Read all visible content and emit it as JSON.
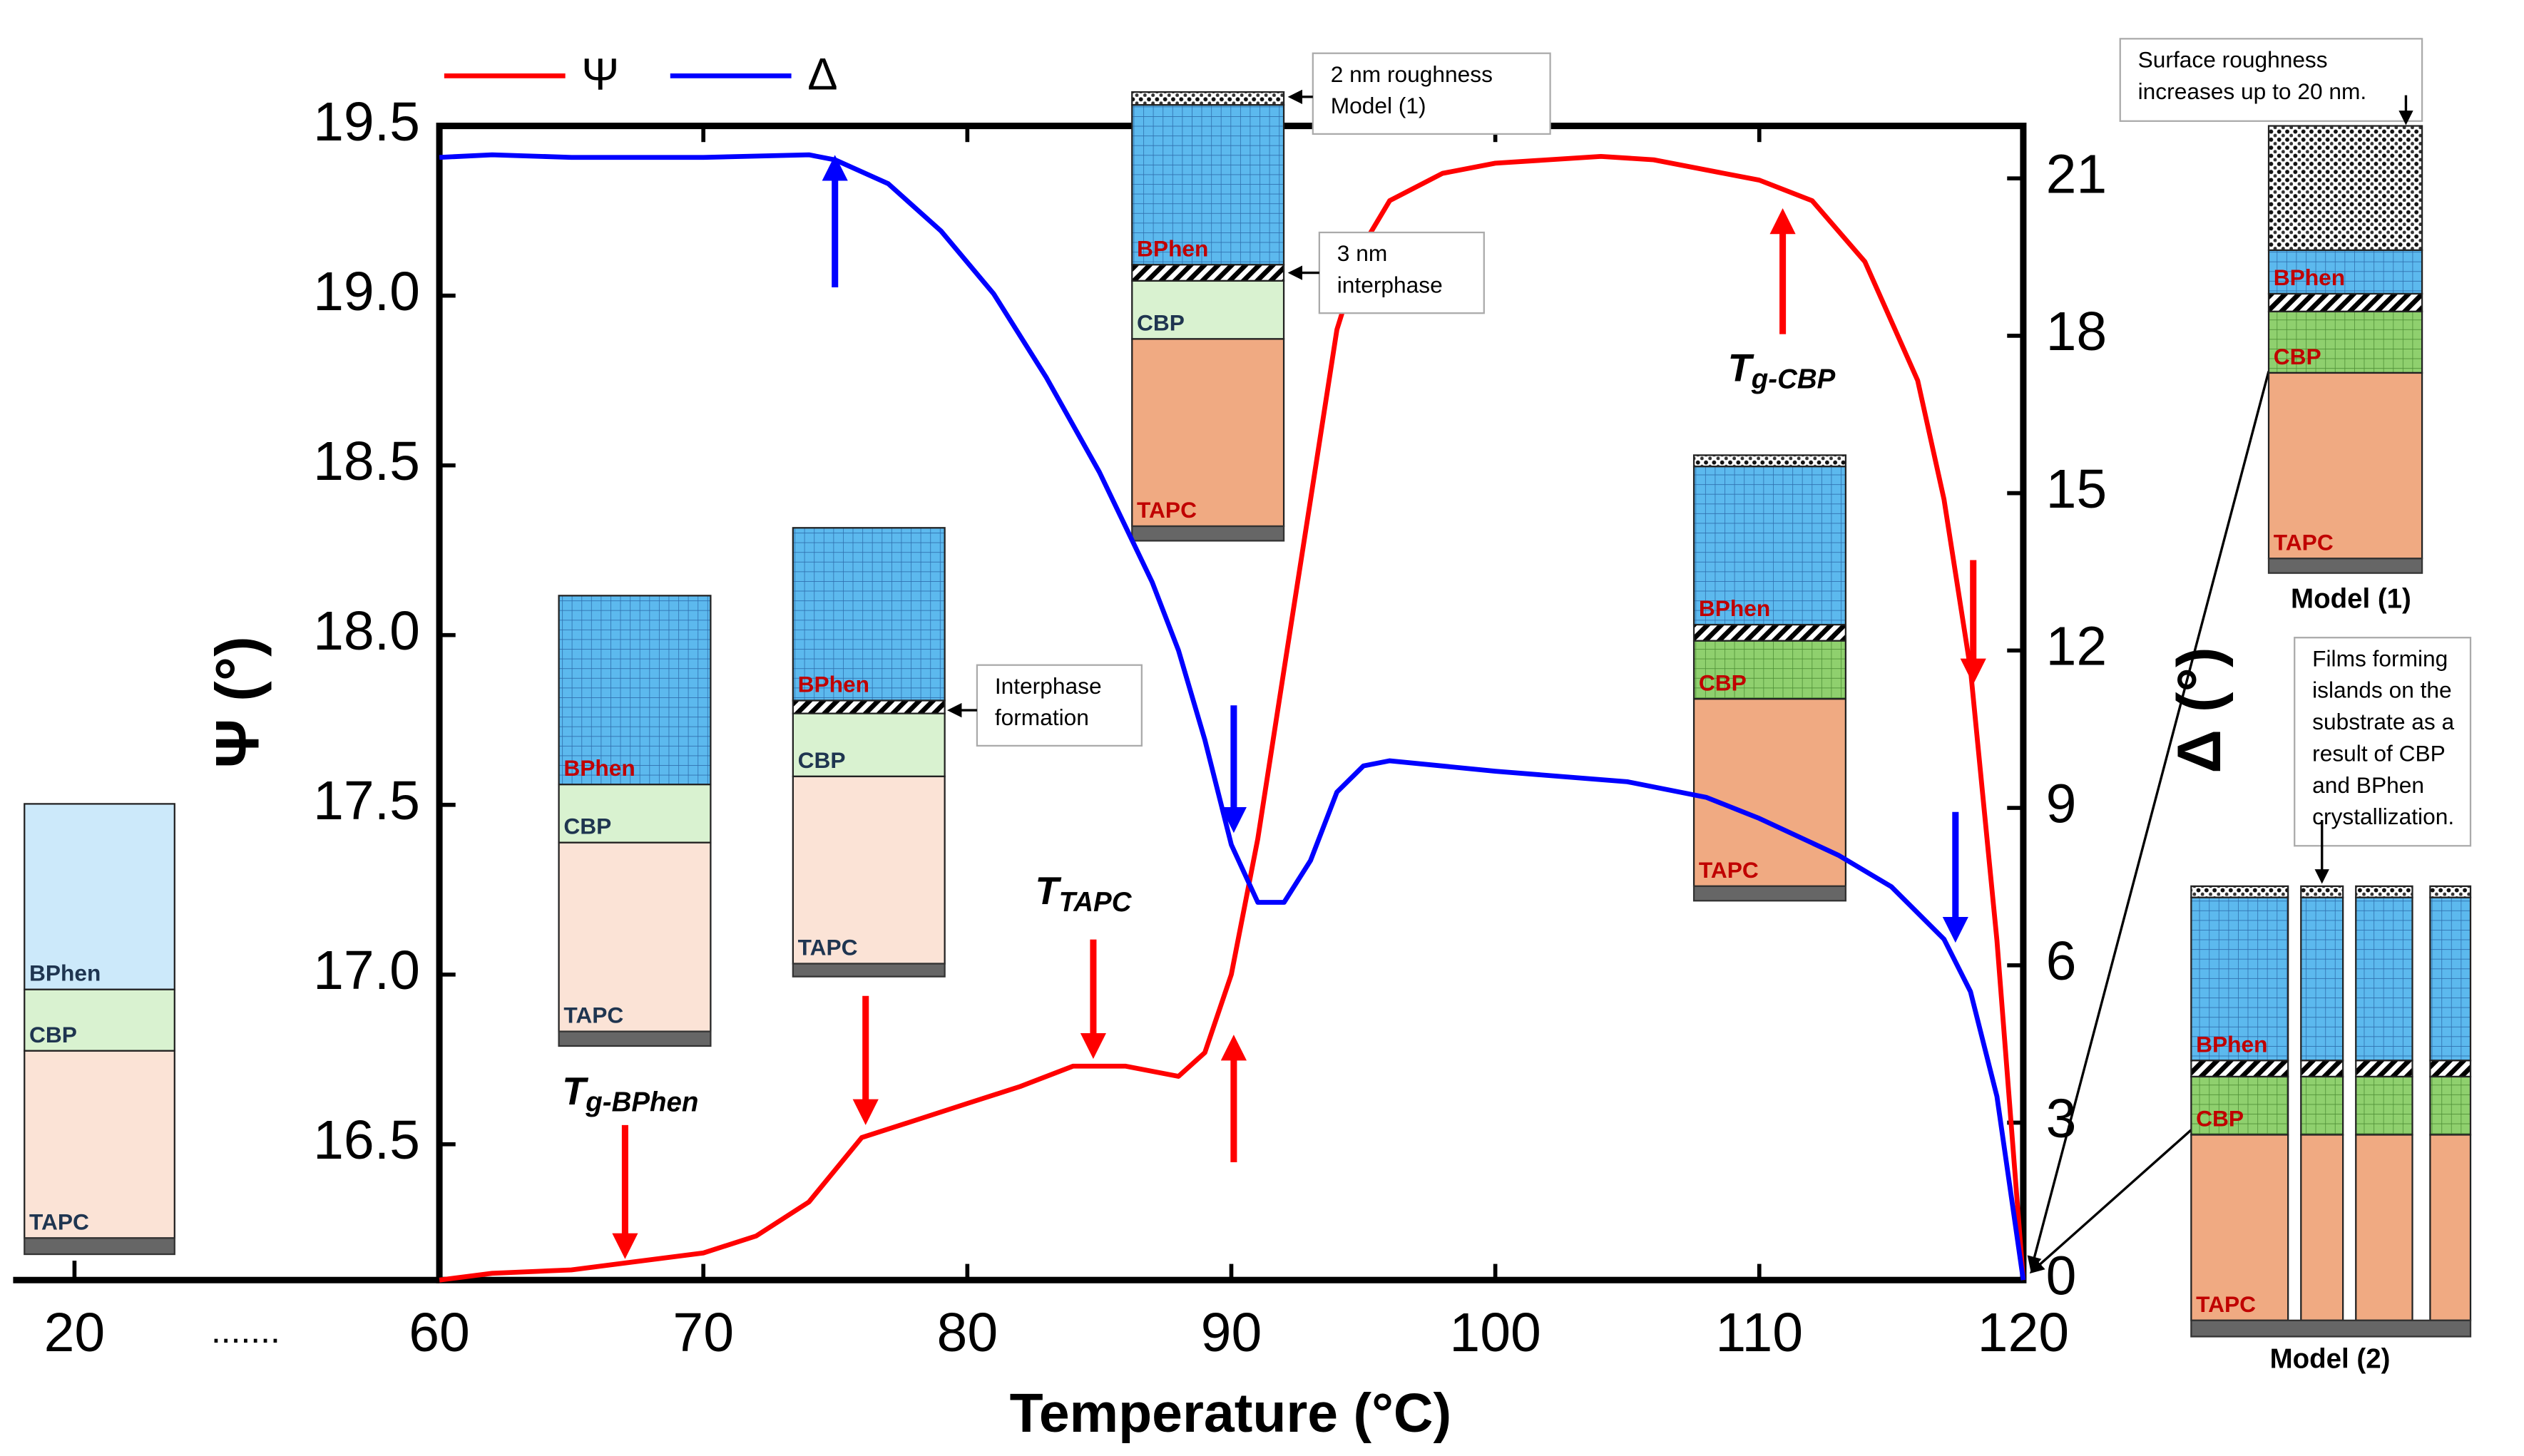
{
  "chart_data": {
    "type": "line",
    "xlabel": "Temperature (°C)",
    "ylabel": "Ψ (°)",
    "y2label": "Δ (°)",
    "xlim": [
      60,
      120
    ],
    "xticks": [
      60,
      70,
      80,
      90,
      100,
      110,
      120
    ],
    "ylim": [
      16.1,
      19.5
    ],
    "yticks": [
      16.5,
      17.0,
      17.5,
      18.0,
      18.5,
      19.0,
      19.5
    ],
    "y2lim": [
      0,
      22
    ],
    "y2ticks": [
      0,
      3,
      6,
      9,
      12,
      15,
      18,
      21
    ],
    "x_break": {
      "tick": 20,
      "ellipsis": "......."
    },
    "series": [
      {
        "name": "Ψ",
        "color": "#ff0000",
        "x": [
          60,
          62,
          65,
          67,
          70,
          72,
          74,
          76,
          78,
          80,
          82,
          84,
          86,
          88,
          89,
          90,
          91,
          92,
          93,
          94,
          95,
          96,
          98,
          100,
          104,
          106,
          110,
          112,
          114,
          116,
          117,
          118,
          119,
          120
        ],
        "values": [
          16.1,
          16.12,
          16.13,
          16.15,
          16.18,
          16.23,
          16.33,
          16.52,
          16.57,
          16.62,
          16.67,
          16.73,
          16.73,
          16.7,
          16.77,
          17.0,
          17.4,
          17.9,
          18.4,
          18.9,
          19.15,
          19.28,
          19.36,
          19.39,
          19.41,
          19.4,
          19.34,
          19.28,
          19.1,
          18.75,
          18.4,
          17.9,
          17.1,
          16.1
        ]
      },
      {
        "name": "Δ",
        "color": "#0000ff",
        "axis": "y2",
        "x": [
          60,
          62,
          65,
          70,
          74,
          75,
          77,
          79,
          81,
          83,
          85,
          87,
          88,
          89,
          90,
          91,
          92,
          93,
          94,
          95,
          96,
          100,
          105,
          108,
          110,
          113,
          115,
          117,
          118,
          119,
          120
        ],
        "values": [
          21.4,
          21.45,
          21.4,
          21.4,
          21.45,
          21.35,
          20.9,
          20.0,
          18.8,
          17.2,
          15.4,
          13.3,
          12.0,
          10.3,
          8.3,
          7.2,
          7.2,
          8.0,
          9.3,
          9.8,
          9.9,
          9.7,
          9.5,
          9.2,
          8.8,
          8.1,
          7.5,
          6.5,
          5.5,
          3.5,
          0
        ]
      }
    ],
    "transition_labels": [
      {
        "main": "T",
        "sub": "g-BPhen"
      },
      {
        "main": "T",
        "sub": "TAPC"
      },
      {
        "main": "T",
        "sub": "g-CBP"
      }
    ],
    "callouts": [
      {
        "lines": [
          "2 nm roughness",
          "Model (1)"
        ]
      },
      {
        "lines": [
          "3 nm",
          "interphase"
        ]
      },
      {
        "lines": [
          "Interphase",
          "formation"
        ]
      },
      {
        "lines": [
          "Surface roughness",
          "increases up to 20 nm."
        ]
      },
      {
        "lines": [
          "Films forming",
          "islands on the",
          "substrate as a",
          "result of CBP",
          "and BPhen",
          "crystallization."
        ]
      }
    ],
    "layer_stacks": [
      {
        "labels": [
          "BPhen",
          "CBP",
          "TAPC"
        ]
      },
      {
        "labels": [
          "BPhen",
          "CBP",
          "TAPC"
        ]
      },
      {
        "labels": [
          "BPhen",
          "CBP",
          "TAPC"
        ]
      },
      {
        "labels": [
          "BPhen",
          "CBP",
          "TAPC"
        ]
      },
      {
        "labels": [
          "BPhen",
          "CBP",
          "TAPC"
        ]
      },
      {
        "labels": [
          "BPhen",
          "CBP",
          "TAPC"
        ]
      },
      {
        "labels": [
          "BPhen",
          "CBP",
          "TAPC"
        ]
      }
    ],
    "model_labels": [
      "Model (1)",
      "Model (2)"
    ]
  }
}
